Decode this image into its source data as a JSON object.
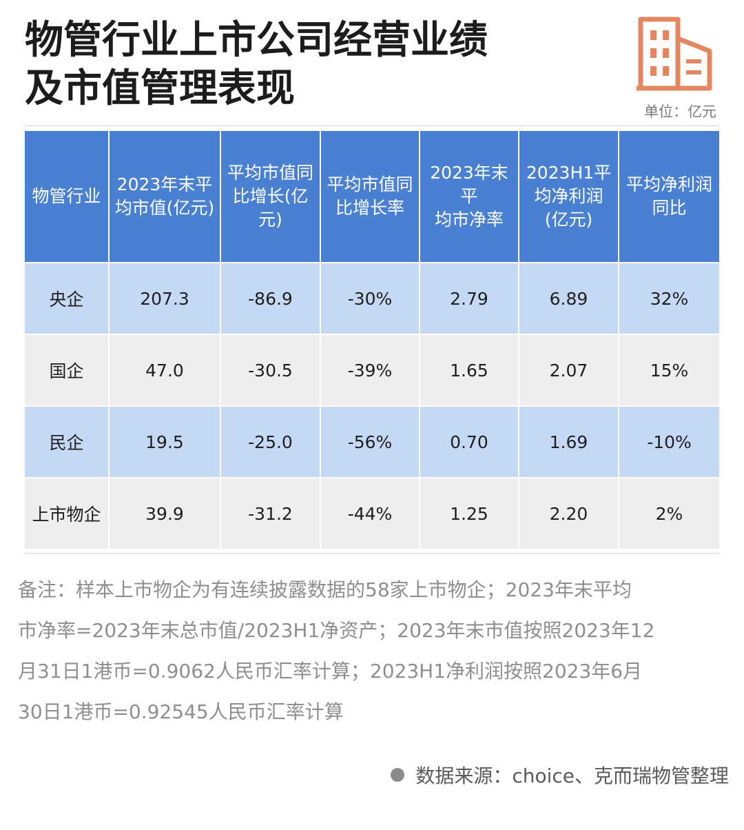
{
  "title_lines": [
    "物管行业上市公司经营业绩",
    "及市值管理表现"
  ],
  "unit": "单位：亿元",
  "icon": "building-icon",
  "colors": {
    "header": "#4a80d2",
    "row_blue": "#c5d9f4",
    "row_gray": "#eeeeee",
    "logo": "#e4865f"
  },
  "chart_data": {
    "type": "table",
    "columns": [
      [
        "物管行业"
      ],
      [
        "2023年末平",
        "均市值(亿元)"
      ],
      [
        "平均市值同",
        "比增长(亿",
        "元)"
      ],
      [
        "平均市值同",
        "比增长率"
      ],
      [
        "2023年末平",
        "均市净率"
      ],
      [
        "2023H1平",
        "均净利润",
        "(亿元)"
      ],
      [
        "平均净利润",
        "同比"
      ]
    ],
    "rows": [
      [
        "央企",
        "207.3",
        "-86.9",
        "-30%",
        "2.79",
        "6.89",
        "32%"
      ],
      [
        "国企",
        "47.0",
        "-30.5",
        "-39%",
        "1.65",
        "2.07",
        "15%"
      ],
      [
        "民企",
        "19.5",
        "-25.0",
        "-56%",
        "0.70",
        "1.69",
        "-10%"
      ],
      [
        "上市物企",
        "39.9",
        "-31.2",
        "-44%",
        "1.25",
        "2.20",
        "2%"
      ]
    ]
  },
  "note_lines": [
    "备注：样本上市物企为有连续披露数据的58家上市物企；2023年末平均",
    "市净率=2023年末总市值/2023H1净资产；2023年末市值按照2023年12",
    "月31日1港币=0.9062人民币汇率计算；2023H1净利润按照2023年6月",
    "30日1港币=0.92545人民币汇率计算"
  ],
  "source": "数据来源：choice、克而瑞物管整理"
}
